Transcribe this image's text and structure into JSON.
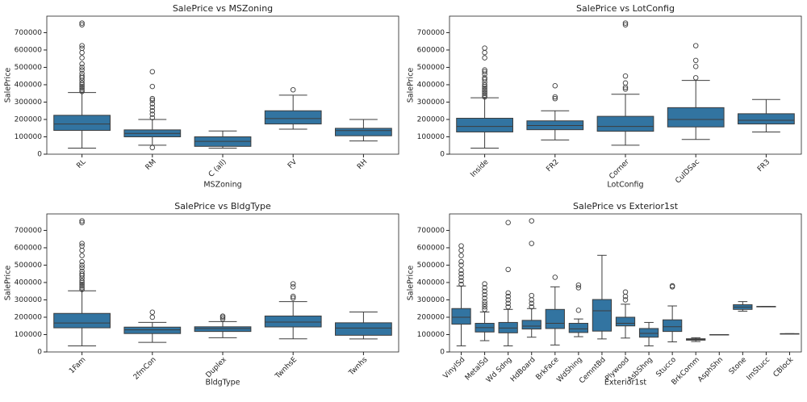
{
  "chart_data": [
    {
      "type": "box",
      "title": "SalePrice vs MSZoning",
      "xlabel": "MSZoning",
      "ylabel": "SalePrice",
      "color": "#3274a1",
      "categories": [
        "RL",
        "RM",
        "C (all)",
        "FV",
        "RH"
      ],
      "boxes": [
        {
          "low": 35000,
          "q1": 137000,
          "median": 174000,
          "q3": 224000,
          "high": 355000,
          "outliers": [
            361000,
            370000,
            380000,
            390000,
            400000,
            410000,
            425000,
            440000,
            450000,
            465000,
            485000,
            500000,
            520000,
            555000,
            585000,
            610000,
            625000,
            745000,
            755000
          ]
        },
        {
          "low": 52000,
          "q1": 100000,
          "median": 120000,
          "q3": 140000,
          "high": 200000,
          "outliers": [
            37900,
            210000,
            230000,
            250000,
            270000,
            290000,
            310000,
            320000,
            390000,
            475000
          ]
        },
        {
          "low": 34900,
          "q1": 45000,
          "median": 74000,
          "q3": 100000,
          "high": 133900,
          "outliers": []
        },
        {
          "low": 144000,
          "q1": 174000,
          "median": 205000,
          "q3": 250000,
          "high": 340000,
          "outliers": [
            370878
          ]
        },
        {
          "low": 76000,
          "q1": 106000,
          "median": 136000,
          "q3": 149000,
          "high": 200000,
          "outliers": []
        }
      ],
      "ylim": [
        0,
        795000
      ],
      "yticks": [
        0,
        100000,
        200000,
        300000,
        400000,
        500000,
        600000,
        700000
      ]
    },
    {
      "type": "box",
      "title": "SalePrice vs LotConfig",
      "xlabel": "LotConfig",
      "ylabel": "SalePrice",
      "color": "#3274a1",
      "categories": [
        "Inside",
        "FR2",
        "Corner",
        "CulDSac",
        "FR3"
      ],
      "boxes": [
        {
          "low": 34900,
          "q1": 128000,
          "median": 160000,
          "q3": 207000,
          "high": 325000,
          "outliers": [
            330000,
            340000,
            350000,
            360000,
            370000,
            380000,
            390000,
            400000,
            415000,
            430000,
            440000,
            460000,
            475000,
            485000,
            555000,
            585000,
            611000
          ]
        },
        {
          "low": 82000,
          "q1": 141000,
          "median": 165000,
          "q3": 192000,
          "high": 250000,
          "outliers": [
            320000,
            330000,
            394000
          ]
        },
        {
          "low": 52000,
          "q1": 132000,
          "median": 160000,
          "q3": 218000,
          "high": 345000,
          "outliers": [
            375000,
            385000,
            410000,
            450000,
            745000,
            755000
          ]
        },
        {
          "low": 85000,
          "q1": 157000,
          "median": 200000,
          "q3": 268000,
          "high": 425000,
          "outliers": [
            440000,
            505000,
            540000,
            625000
          ]
        },
        {
          "low": 128000,
          "q1": 174000,
          "median": 195000,
          "q3": 233000,
          "high": 315000,
          "outliers": []
        }
      ],
      "ylim": [
        0,
        795000
      ],
      "yticks": [
        0,
        100000,
        200000,
        300000,
        400000,
        500000,
        600000,
        700000
      ]
    },
    {
      "type": "box",
      "title": "SalePrice vs BldgType",
      "xlabel": "BldgType",
      "ylabel": "SalePrice",
      "color": "#3274a1",
      "categories": [
        "1Fam",
        "2fmCon",
        "Duplex",
        "TwnhsE",
        "Twnhs"
      ],
      "boxes": [
        {
          "low": 34900,
          "q1": 139000,
          "median": 167000,
          "q3": 222000,
          "high": 352000,
          "outliers": [
            360000,
            370000,
            380000,
            390000,
            400000,
            410000,
            425000,
            440000,
            450000,
            465000,
            485000,
            500000,
            520000,
            555000,
            585000,
            610000,
            625000,
            745000,
            755000
          ]
        },
        {
          "low": 55000,
          "q1": 106000,
          "median": 127500,
          "q3": 143000,
          "high": 170000,
          "outliers": [
            200000,
            228950
          ]
        },
        {
          "low": 82000,
          "q1": 118000,
          "median": 135000,
          "q3": 145000,
          "high": 175000,
          "outliers": [
            190000,
            200000,
            206300
          ]
        },
        {
          "low": 75500,
          "q1": 144000,
          "median": 172000,
          "q3": 207000,
          "high": 290000,
          "outliers": [
            310000,
            320000,
            375000,
            392500
          ]
        },
        {
          "low": 75000,
          "q1": 96000,
          "median": 137500,
          "q3": 168000,
          "high": 230000,
          "outliers": []
        }
      ],
      "ylim": [
        0,
        795000
      ],
      "yticks": [
        0,
        100000,
        200000,
        300000,
        400000,
        500000,
        600000,
        700000
      ]
    },
    {
      "type": "box",
      "title": "SalePrice vs Exterior1st",
      "xlabel": "Exterior1st",
      "ylabel": "SalePrice",
      "color": "#3274a1",
      "categories": [
        "VinylSd",
        "MetalSd",
        "Wd Sdng",
        "HdBoard",
        "BrkFace",
        "WdShing",
        "CemntBd",
        "Plywood",
        "AsbShng",
        "Stucco",
        "BrkComm",
        "AsphShn",
        "Stone",
        "ImStucc",
        "CBlock"
      ],
      "boxes": [
        {
          "low": 35000,
          "q1": 160000,
          "median": 200000,
          "q3": 250000,
          "high": 380000,
          "outliers": [
            390000,
            410000,
            430000,
            450000,
            470000,
            500000,
            520000,
            555000,
            585000,
            611000
          ]
        },
        {
          "low": 65000,
          "q1": 115000,
          "median": 140000,
          "q3": 165000,
          "high": 230000,
          "outliers": [
            245000,
            260000,
            275000,
            290000,
            310000,
            330000,
            350000,
            370000,
            392000
          ]
        },
        {
          "low": 35000,
          "q1": 110000,
          "median": 138000,
          "q3": 170000,
          "high": 245000,
          "outliers": [
            260000,
            280000,
            300000,
            320000,
            340000,
            475000,
            745000
          ]
        },
        {
          "low": 85000,
          "q1": 132000,
          "median": 149000,
          "q3": 182000,
          "high": 250000,
          "outliers": [
            260000,
            280000,
            300000,
            325000,
            625000,
            755000
          ]
        },
        {
          "low": 40000,
          "q1": 135000,
          "median": 165000,
          "q3": 245000,
          "high": 375000,
          "outliers": [
            430000
          ]
        },
        {
          "low": 88000,
          "q1": 112000,
          "median": 133000,
          "q3": 165000,
          "high": 190000,
          "outliers": [
            240000,
            370000,
            385000
          ]
        },
        {
          "low": 75000,
          "q1": 120000,
          "median": 237000,
          "q3": 302000,
          "high": 556581,
          "outliers": []
        },
        {
          "low": 80000,
          "q1": 150000,
          "median": 165000,
          "q3": 200000,
          "high": 275000,
          "outliers": [
            300000,
            320000,
            345000
          ]
        },
        {
          "low": 35000,
          "q1": 85000,
          "median": 107000,
          "q3": 135000,
          "high": 170000,
          "outliers": []
        },
        {
          "low": 58000,
          "q1": 118000,
          "median": 145000,
          "q3": 185000,
          "high": 265000,
          "outliers": [
            375000,
            381000
          ]
        },
        {
          "low": 60000,
          "q1": 68000,
          "median": 72000,
          "q3": 76000,
          "high": 82000,
          "outliers": []
        },
        {
          "low": 100000,
          "q1": 100000,
          "median": 100000,
          "q3": 100000,
          "high": 100000,
          "outliers": []
        },
        {
          "low": 235000,
          "q1": 245000,
          "median": 258500,
          "q3": 272000,
          "high": 290000,
          "outliers": []
        },
        {
          "low": 262000,
          "q1": 262000,
          "median": 262000,
          "q3": 262000,
          "high": 262000,
          "outliers": []
        },
        {
          "low": 105000,
          "q1": 105000,
          "median": 105000,
          "q3": 105000,
          "high": 105000,
          "outliers": []
        }
      ],
      "ylim": [
        0,
        795000
      ],
      "yticks": [
        0,
        100000,
        200000,
        300000,
        400000,
        500000,
        600000,
        700000
      ]
    }
  ]
}
